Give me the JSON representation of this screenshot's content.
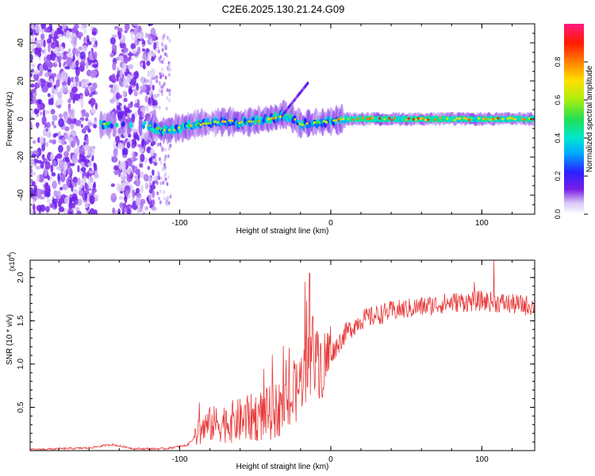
{
  "title": "C2E6.2025.130.21.24.G09",
  "chart_data": [
    {
      "type": "heatmap",
      "xlabel": "Height of straight line (km)",
      "ylabel": "Frequency (Hz)",
      "xlim": [
        -199,
        135
      ],
      "ylim": [
        -50,
        50
      ],
      "xticks": [
        -100,
        0,
        100
      ],
      "yticks": [
        -40,
        -20,
        0,
        20,
        40
      ],
      "colorbar": {
        "label": "Normalized spectral amplitude",
        "range": [
          0,
          1
        ],
        "ticks": [
          "0.0",
          "0.2",
          "0.4",
          "0.6",
          "0.8"
        ],
        "tick_values": [
          0,
          0.2,
          0.4,
          0.6,
          0.8
        ]
      },
      "ridge_frequency_hz": [
        [
          -150,
          -3
        ],
        [
          -140,
          -2
        ],
        [
          -130,
          -3
        ],
        [
          -120,
          -4
        ],
        [
          -110,
          -6
        ],
        [
          -100,
          -5
        ],
        [
          -90,
          -3
        ],
        [
          -80,
          -2
        ],
        [
          -70,
          -1
        ],
        [
          -60,
          -2
        ],
        [
          -50,
          -1
        ],
        [
          -40,
          0
        ],
        [
          -30,
          2
        ],
        [
          -22,
          -1
        ],
        [
          -20,
          -3
        ],
        [
          -10,
          -2
        ],
        [
          0,
          -1
        ],
        [
          10,
          0
        ],
        [
          30,
          0
        ],
        [
          60,
          0
        ],
        [
          90,
          0
        ],
        [
          135,
          0
        ]
      ],
      "noise_columns_km": [
        [
          -199,
          -155
        ],
        [
          -145,
          -116
        ]
      ]
    },
    {
      "type": "line",
      "xlabel": "Height of straight line (km)",
      "ylabel": "SNR (10 * v/v)",
      "multiplier": "(x10",
      "multiplier_exp": "4",
      "multiplier_close": ")",
      "xlim": [
        -199,
        135
      ],
      "ylim": [
        0,
        2.2
      ],
      "xticks": [
        -100,
        0,
        100
      ],
      "yticks": [
        0.5,
        1.0,
        1.5,
        2.0
      ],
      "ytick_labels": [
        "0.5",
        "1.0",
        "1.5",
        "2.0"
      ],
      "trend": {
        "x": [
          -199,
          -160,
          -145,
          -130,
          -110,
          -95,
          -88,
          -80,
          -60,
          -40,
          -25,
          -18,
          -12,
          -5,
          0,
          10,
          20,
          40,
          60,
          80,
          100,
          120,
          135
        ],
        "y": [
          0.01,
          0.03,
          0.07,
          0.02,
          0.02,
          0.06,
          0.2,
          0.28,
          0.32,
          0.4,
          0.55,
          0.85,
          1.0,
          0.95,
          1.1,
          1.35,
          1.5,
          1.6,
          1.65,
          1.7,
          1.72,
          1.68,
          1.66
        ]
      },
      "spikes": [
        [
          -17,
          1.95
        ],
        [
          -14,
          2.05
        ],
        [
          -12,
          1.55
        ],
        [
          -10,
          1.35
        ],
        [
          95,
          1.95
        ],
        [
          108,
          2.2
        ]
      ],
      "color": "#e83a3a"
    }
  ]
}
